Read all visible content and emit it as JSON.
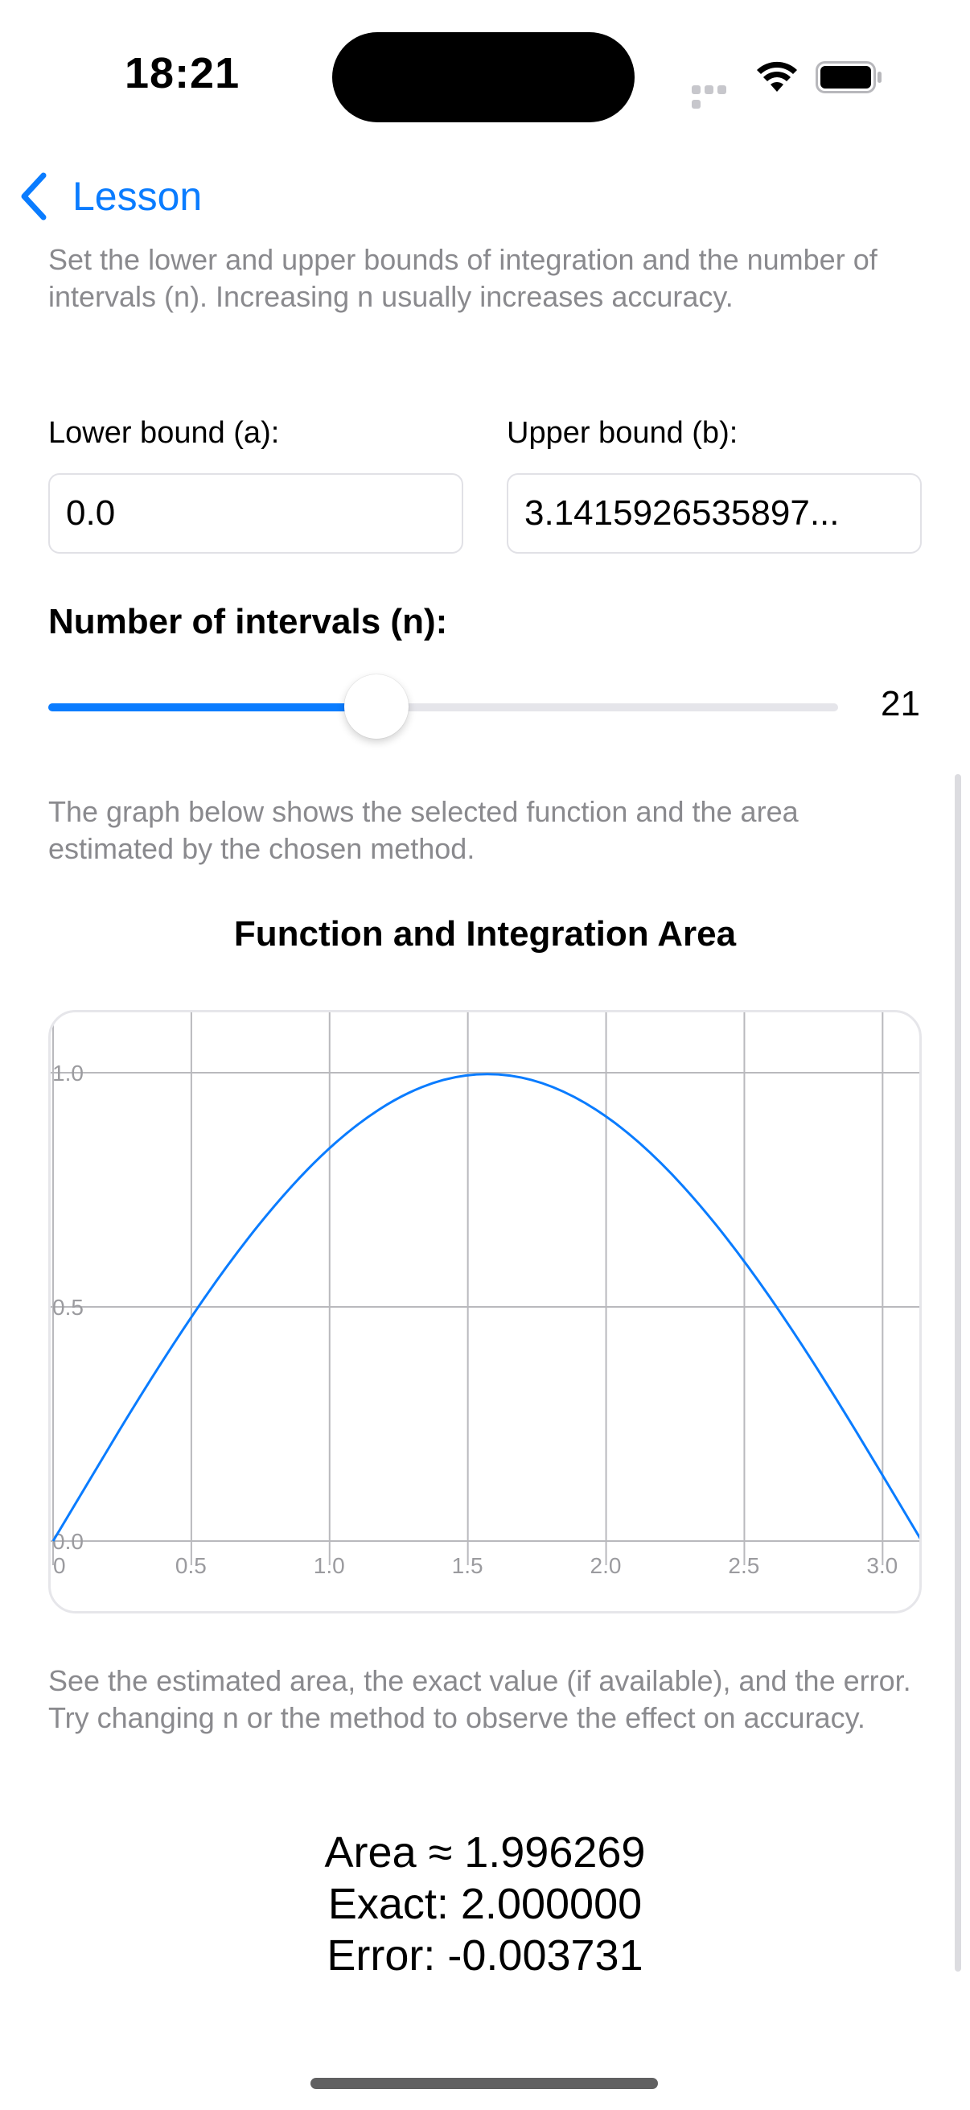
{
  "status_bar": {
    "time": "18:21"
  },
  "nav": {
    "back_label": "Lesson"
  },
  "instructions": {
    "bounds_text": "Set the lower and upper bounds of integration and the number of intervals (n). Increasing n usually increases accuracy.",
    "graph_text": "The graph below shows the selected function and the area estimated by the chosen method.",
    "results_text": "See the estimated area, the exact value (if available), and the error. Try changing n or the method to observe the effect on accuracy."
  },
  "bounds": {
    "lower_label": "Lower bound (a):",
    "lower_value": "0.0",
    "upper_label": "Upper bound (b):",
    "upper_value": "3.1415926535897..."
  },
  "intervals": {
    "label": "Number of intervals (n):",
    "value": "21",
    "slider_fraction": 0.415
  },
  "colors": {
    "accent": "#0a7cff",
    "curve": "#0a7cff",
    "grid": "#b9b9bd",
    "axis_label": "#9b9b9f"
  },
  "chart_data": {
    "type": "line",
    "title": "Function and Integration Area",
    "xlabel": "",
    "ylabel": "",
    "xlim": [
      0,
      3.14159
    ],
    "ylim": [
      0,
      1.0
    ],
    "x_ticks": [
      "0",
      "0.5",
      "1.0",
      "1.5",
      "2.0",
      "2.5",
      "3.0"
    ],
    "y_ticks": [
      "0.0",
      "0.5",
      "1.0"
    ],
    "grid": true,
    "series": [
      {
        "x": [
          0,
          0.1571,
          0.3142,
          0.4712,
          0.6283,
          0.7854,
          0.9425,
          1.0996,
          1.2566,
          1.4137,
          1.5708,
          1.7279,
          1.885,
          2.042,
          2.1991,
          2.3562,
          2.5133,
          2.6704,
          2.8274,
          2.9845,
          3.1416
        ],
        "y": [
          0,
          0.156,
          0.309,
          0.454,
          0.588,
          0.707,
          0.809,
          0.891,
          0.951,
          0.988,
          1.0,
          0.988,
          0.951,
          0.891,
          0.809,
          0.707,
          0.588,
          0.454,
          0.309,
          0.156,
          0
        ]
      }
    ]
  },
  "results": {
    "area": "Area ≈ 1.996269",
    "exact": "Exact: 2.000000",
    "error": "Error: -0.003731"
  }
}
